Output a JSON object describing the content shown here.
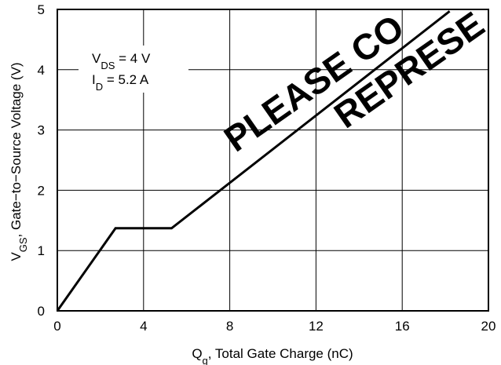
{
  "chart_data": {
    "type": "line",
    "xlabel": {
      "main": "Q",
      "sub": "g",
      "rest": ", Total Gate Charge (nC)"
    },
    "ylabel": {
      "main": "V",
      "sub": "GS",
      "rest": ", Gate−to−Source Voltage (V)"
    },
    "xlim": [
      0,
      20
    ],
    "ylim": [
      0,
      5
    ],
    "xticks": [
      "0",
      "4",
      "8",
      "12",
      "16",
      "20"
    ],
    "yticks": [
      "0",
      "1",
      "2",
      "3",
      "4",
      "5"
    ],
    "grid": true,
    "series": [
      {
        "x": [
          0,
          2.7,
          5.3,
          18.2
        ],
        "y": [
          0,
          1.37,
          1.37,
          4.97
        ]
      }
    ],
    "annotations": [
      {
        "main": "V",
        "sub": "DS",
        "rest": " = 4 V"
      },
      {
        "main": "I",
        "sub": "D",
        "rest": " = 5.2 A"
      }
    ],
    "watermark": [
      "PLEASE CO",
      "REPRESE"
    ]
  }
}
